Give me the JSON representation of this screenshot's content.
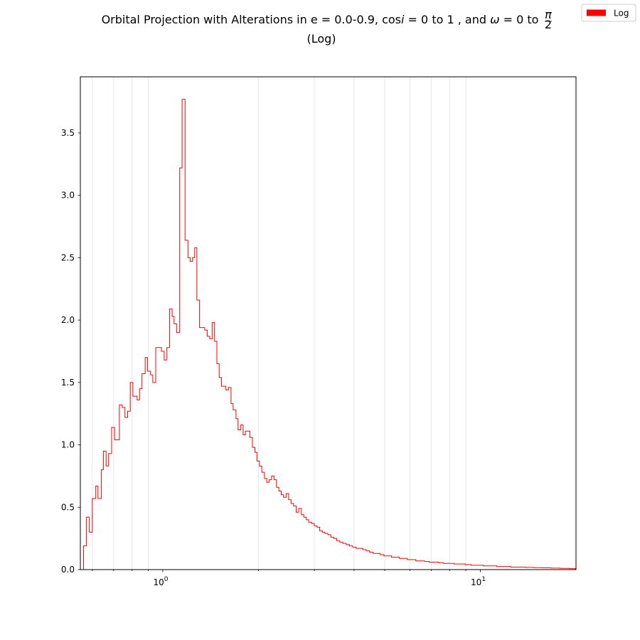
{
  "chart_data": {
    "type": "histogram",
    "title": {
      "part1": "Orbital Projection with Alterations in e = 0.0-0.9, cos",
      "symbol_i": "i",
      "part2": " = 0 to 1 , and ",
      "symbol_omega": "ω",
      "part3": " = 0 to ",
      "frac_num": "π",
      "frac_den": "2",
      "line2": "(Log)"
    },
    "xscale": "log",
    "xlim": [
      0.55,
      20
    ],
    "ylim": [
      0,
      3.95
    ],
    "grid": {
      "x_minor": true,
      "y": false
    },
    "line_color": "#ff0000",
    "x_major_ticks": [
      {
        "value": 1,
        "base": "10",
        "exp": "0"
      },
      {
        "value": 10,
        "base": "10",
        "exp": "1"
      }
    ],
    "x_minor_ticks": [
      0.6,
      0.7,
      0.8,
      0.9,
      2,
      3,
      4,
      5,
      6,
      7,
      8,
      9
    ],
    "y_ticks": [
      {
        "value": 0.0,
        "label": "0.0"
      },
      {
        "value": 0.5,
        "label": "0.5"
      },
      {
        "value": 1.0,
        "label": "1.0"
      },
      {
        "value": 1.5,
        "label": "1.5"
      },
      {
        "value": 2.0,
        "label": "2.0"
      },
      {
        "value": 2.5,
        "label": "2.5"
      },
      {
        "value": 3.0,
        "label": "3.0"
      },
      {
        "value": 3.5,
        "label": "3.5"
      }
    ],
    "legend": {
      "label": "Log",
      "color": "#ff0000",
      "location": "top-right"
    },
    "series": [
      {
        "name": "Log",
        "points": [
          [
            0.56,
            0.0
          ],
          [
            0.563,
            0.19
          ],
          [
            0.575,
            0.42
          ],
          [
            0.587,
            0.3
          ],
          [
            0.6,
            0.57
          ],
          [
            0.615,
            0.67
          ],
          [
            0.625,
            0.57
          ],
          [
            0.64,
            0.8
          ],
          [
            0.65,
            0.95
          ],
          [
            0.663,
            0.83
          ],
          [
            0.675,
            0.93
          ],
          [
            0.69,
            1.14
          ],
          [
            0.705,
            1.04
          ],
          [
            0.73,
            1.32
          ],
          [
            0.745,
            1.3
          ],
          [
            0.76,
            1.22
          ],
          [
            0.775,
            1.27
          ],
          [
            0.79,
            1.5
          ],
          [
            0.805,
            1.39
          ],
          [
            0.83,
            1.36
          ],
          [
            0.845,
            1.45
          ],
          [
            0.86,
            1.57
          ],
          [
            0.88,
            1.7
          ],
          [
            0.895,
            1.59
          ],
          [
            0.915,
            1.56
          ],
          [
            0.93,
            1.5
          ],
          [
            0.95,
            1.78
          ],
          [
            0.99,
            1.75
          ],
          [
            1.01,
            1.68
          ],
          [
            1.03,
            1.78
          ],
          [
            1.05,
            2.09
          ],
          [
            1.07,
            2.03
          ],
          [
            1.085,
            1.97
          ],
          [
            1.105,
            1.9
          ],
          [
            1.13,
            3.22
          ],
          [
            1.15,
            3.77
          ],
          [
            1.175,
            2.64
          ],
          [
            1.2,
            2.5
          ],
          [
            1.22,
            2.47
          ],
          [
            1.24,
            2.5
          ],
          [
            1.26,
            2.58
          ],
          [
            1.28,
            2.16
          ],
          [
            1.305,
            1.94
          ],
          [
            1.355,
            1.92
          ],
          [
            1.38,
            1.87
          ],
          [
            1.405,
            1.85
          ],
          [
            1.43,
            1.98
          ],
          [
            1.455,
            1.83
          ],
          [
            1.48,
            1.65
          ],
          [
            1.505,
            1.54
          ],
          [
            1.53,
            1.47
          ],
          [
            1.58,
            1.44
          ],
          [
            1.61,
            1.46
          ],
          [
            1.64,
            1.33
          ],
          [
            1.665,
            1.28
          ],
          [
            1.7,
            1.21
          ],
          [
            1.725,
            1.12
          ],
          [
            1.76,
            1.16
          ],
          [
            1.79,
            1.08
          ],
          [
            1.82,
            1.11
          ],
          [
            1.88,
            1.06
          ],
          [
            1.915,
            0.98
          ],
          [
            1.95,
            0.94
          ],
          [
            1.98,
            0.87
          ],
          [
            2.015,
            0.83
          ],
          [
            2.05,
            0.78
          ],
          [
            2.09,
            0.73
          ],
          [
            2.125,
            0.7
          ],
          [
            2.16,
            0.72
          ],
          [
            2.2,
            0.75
          ],
          [
            2.24,
            0.72
          ],
          [
            2.28,
            0.66
          ],
          [
            2.32,
            0.63
          ],
          [
            2.36,
            0.6
          ],
          [
            2.4,
            0.58
          ],
          [
            2.445,
            0.61
          ],
          [
            2.49,
            0.56
          ],
          [
            2.535,
            0.53
          ],
          [
            2.58,
            0.51
          ],
          [
            2.63,
            0.46
          ],
          [
            2.68,
            0.49
          ],
          [
            2.73,
            0.44
          ],
          [
            2.78,
            0.42
          ],
          [
            2.83,
            0.4
          ],
          [
            2.88,
            0.38
          ],
          [
            2.94,
            0.37
          ],
          [
            3.0,
            0.35
          ],
          [
            3.06,
            0.34
          ],
          [
            3.12,
            0.31
          ],
          [
            3.18,
            0.3
          ],
          [
            3.24,
            0.29
          ],
          [
            3.31,
            0.28
          ],
          [
            3.38,
            0.26
          ],
          [
            3.45,
            0.25
          ],
          [
            3.53,
            0.23
          ],
          [
            3.61,
            0.22
          ],
          [
            3.69,
            0.21
          ],
          [
            3.78,
            0.2
          ],
          [
            3.87,
            0.19
          ],
          [
            3.96,
            0.18
          ],
          [
            4.06,
            0.17
          ],
          [
            4.16,
            0.17
          ],
          [
            4.26,
            0.16
          ],
          [
            4.37,
            0.15
          ],
          [
            4.48,
            0.14
          ],
          [
            4.6,
            0.13
          ],
          [
            4.72,
            0.13
          ],
          [
            4.84,
            0.12
          ],
          [
            4.97,
            0.11
          ],
          [
            5.11,
            0.11
          ],
          [
            5.25,
            0.1
          ],
          [
            5.4,
            0.1
          ],
          [
            5.56,
            0.09
          ],
          [
            5.72,
            0.09
          ],
          [
            5.89,
            0.08
          ],
          [
            6.07,
            0.08
          ],
          [
            6.26,
            0.07
          ],
          [
            6.46,
            0.07
          ],
          [
            6.67,
            0.065
          ],
          [
            6.9,
            0.06
          ],
          [
            7.14,
            0.06
          ],
          [
            7.39,
            0.055
          ],
          [
            7.66,
            0.05
          ],
          [
            7.95,
            0.05
          ],
          [
            8.26,
            0.045
          ],
          [
            8.6,
            0.045
          ],
          [
            8.96,
            0.04
          ],
          [
            9.35,
            0.035
          ],
          [
            9.77,
            0.035
          ],
          [
            10.22,
            0.03
          ],
          [
            10.71,
            0.03
          ],
          [
            11.25,
            0.025
          ],
          [
            11.83,
            0.025
          ],
          [
            12.46,
            0.02
          ],
          [
            13.15,
            0.02
          ],
          [
            13.91,
            0.018
          ],
          [
            14.75,
            0.016
          ],
          [
            15.67,
            0.014
          ],
          [
            16.69,
            0.012
          ],
          [
            17.82,
            0.01
          ],
          [
            19.08,
            0.008
          ],
          [
            19.9,
            0.0
          ]
        ]
      }
    ]
  }
}
